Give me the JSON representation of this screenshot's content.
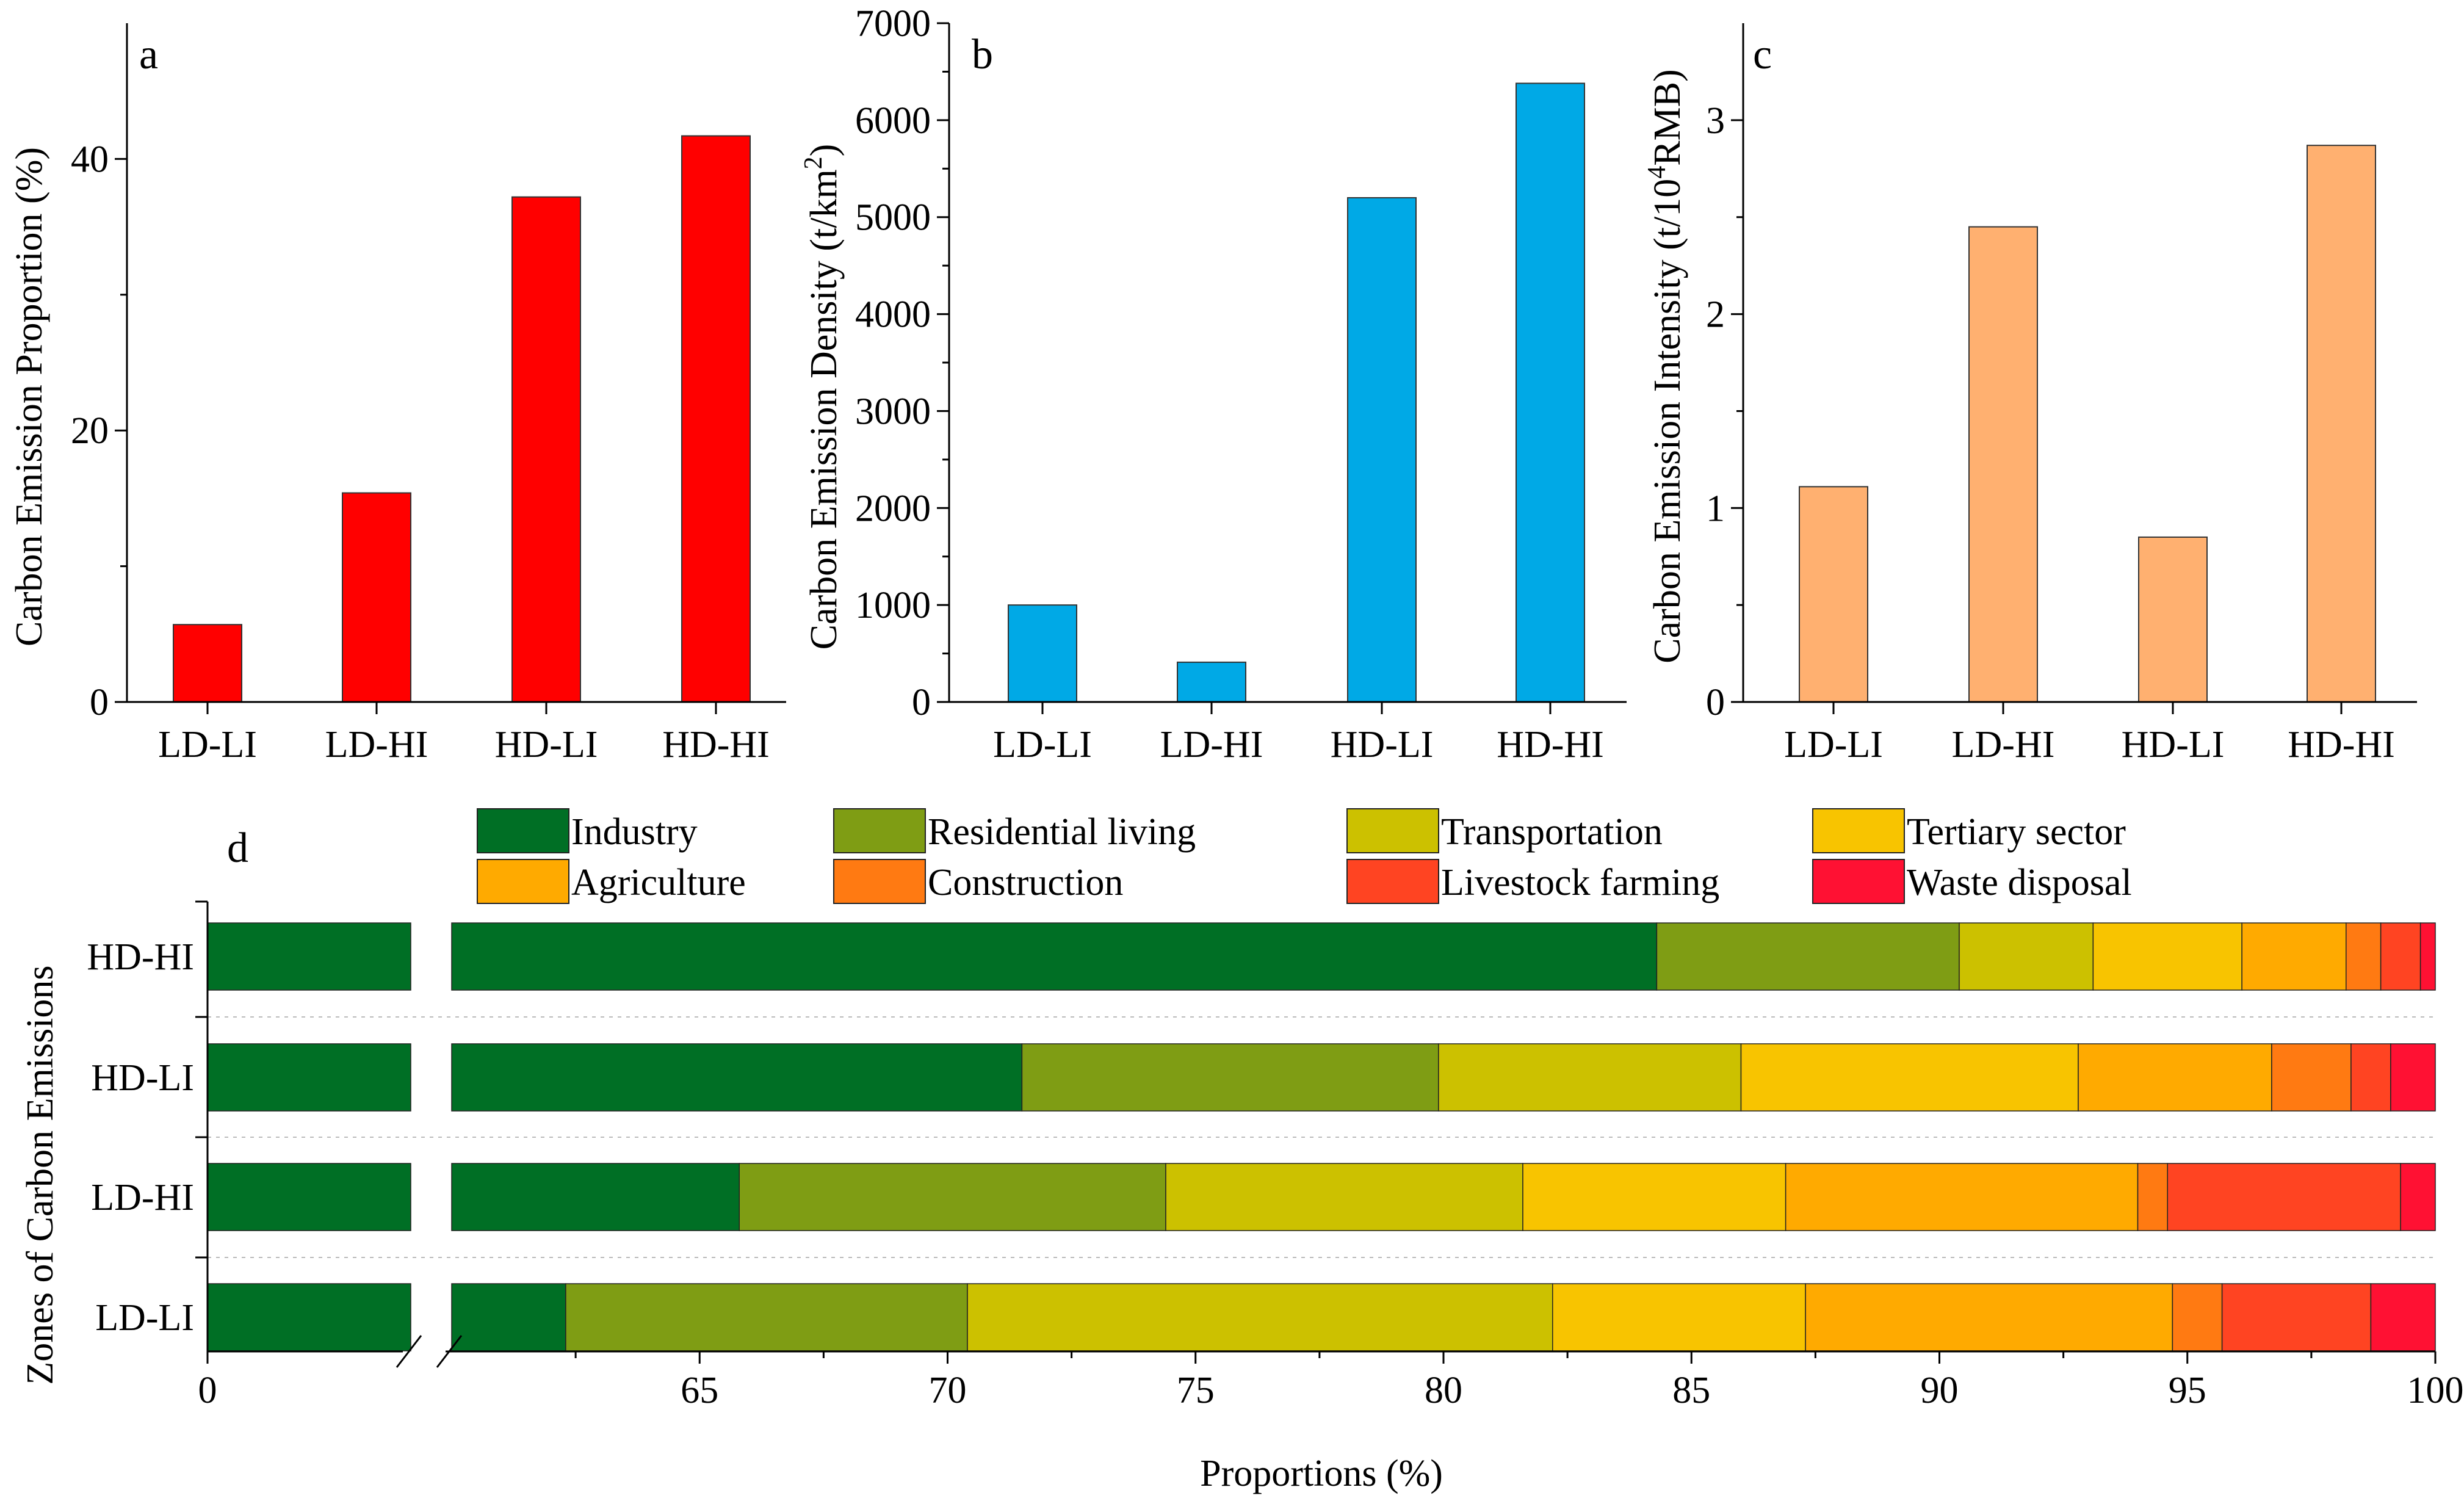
{
  "chart_data": [
    {
      "panel": "a",
      "type": "bar",
      "ylabel": "Carbon Emission Proportion (%)",
      "categories": [
        "LD-LI",
        "LD-HI",
        "HD-LI",
        "HD-HI"
      ],
      "values": [
        5.7,
        15.4,
        37.2,
        41.7
      ],
      "ylim": [
        0,
        50
      ],
      "yticks": [
        "0",
        "20",
        "40"
      ],
      "color": "#ff0000"
    },
    {
      "panel": "b",
      "type": "bar",
      "ylabel_pre": "Carbon Emission Density (t/km",
      "ylabel_sup": "2",
      "ylabel_post": ")",
      "categories": [
        "LD-LI",
        "LD-HI",
        "HD-LI",
        "HD-HI"
      ],
      "values": [
        1000,
        410,
        5200,
        6380
      ],
      "ylim": [
        0,
        7000
      ],
      "yticks": [
        "0",
        "1000",
        "2000",
        "3000",
        "4000",
        "5000",
        "6000",
        "7000"
      ],
      "color": "#00a9e6"
    },
    {
      "panel": "c",
      "type": "bar",
      "ylabel_pre": "Carbon Emission Intensity (t/10",
      "ylabel_sup": "4",
      "ylabel_post": "RMB)",
      "categories": [
        "LD-LI",
        "LD-HI",
        "HD-LI",
        "HD-HI"
      ],
      "values": [
        1.11,
        2.45,
        0.85,
        2.87
      ],
      "ylim": [
        0,
        3.5
      ],
      "yticks": [
        "0",
        "1",
        "2",
        "3"
      ],
      "color": "#ffb070"
    },
    {
      "panel": "d",
      "type": "bar",
      "orientation": "horizontal-stacked",
      "xlabel": "Proportions (%)",
      "ylabel": "Zones of Carbon Emissions",
      "xlim": [
        0,
        100
      ],
      "axis_break": [
        0,
        60
      ],
      "xticks": [
        "0",
        "65",
        "70",
        "75",
        "80",
        "85",
        "90",
        "95",
        "100"
      ],
      "categories": [
        "HD-HI",
        "HD-LI",
        "LD-HI",
        "LD-LI"
      ],
      "series": [
        {
          "name": "Industry",
          "color": "#006f25",
          "values": [
            84.3,
            71.5,
            65.8,
            62.3
          ]
        },
        {
          "name": "Residential living",
          "color": "#7f9d14",
          "values": [
            6.1,
            8.4,
            8.6,
            8.1
          ]
        },
        {
          "name": "Transportation",
          "color": "#ccc100",
          "values": [
            2.7,
            6.1,
            7.2,
            11.8
          ]
        },
        {
          "name": "Tertiary sector",
          "color": "#f8c400",
          "values": [
            3.0,
            6.8,
            5.3,
            5.1
          ]
        },
        {
          "name": "Agriculture",
          "color": "#ffaa00",
          "values": [
            2.1,
            3.9,
            7.1,
            7.4
          ]
        },
        {
          "name": "Construction",
          "color": "#ff7a12",
          "values": [
            0.7,
            1.6,
            0.6,
            1.0
          ]
        },
        {
          "name": "Livestock farming",
          "color": "#ff4422",
          "values": [
            0.8,
            0.8,
            4.7,
            3.0
          ]
        },
        {
          "name": "Waste disposal",
          "color": "#ff1133",
          "values": [
            0.5,
            1.0,
            0.8,
            1.3
          ]
        }
      ]
    }
  ]
}
